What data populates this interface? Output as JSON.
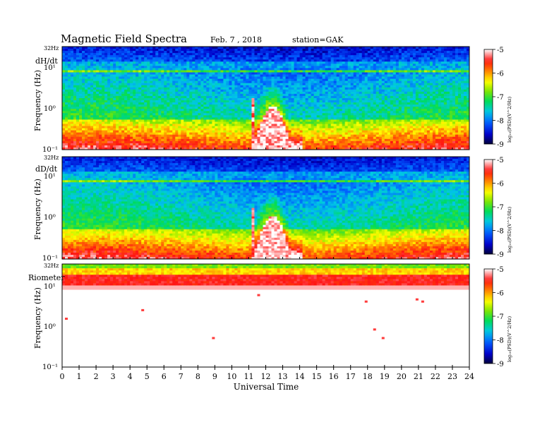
{
  "header": {
    "title": "Magnetic  Field  Spectra",
    "date": "Feb. 7  , 2018",
    "station": "station=GAK"
  },
  "x_axis": {
    "label": "Universal  Time",
    "ticks": [
      "0",
      "1",
      "2",
      "3",
      "4",
      "5",
      "6",
      "7",
      "8",
      "9",
      "10",
      "11",
      "12",
      "13",
      "14",
      "15",
      "16",
      "17",
      "18",
      "19",
      "20",
      "21",
      "22",
      "23",
      "24"
    ]
  },
  "colorbar": {
    "label": "log₁₀(PSD)(V^2/Hz)",
    "ticks": [
      "-5",
      "-6",
      "-7",
      "-8",
      "-9"
    ],
    "stops": [
      "#ffffff",
      "#ff2020",
      "#ffff00",
      "#00dd00",
      "#00cccc",
      "#0040ff",
      "#000040"
    ]
  },
  "panels": [
    {
      "name": "dH/dt",
      "ylabel": "Frequency  (Hz)",
      "top_label": "32Hz",
      "yticks": [
        "10¹",
        "10⁰",
        "10⁻¹"
      ]
    },
    {
      "name": "dD/dt",
      "ylabel": "Frequency  (Hz)",
      "top_label": "32Hz",
      "yticks": [
        "10¹",
        "10⁰",
        "10⁻¹"
      ]
    },
    {
      "name": "Riometer",
      "ylabel": "Frequency  (Hz)",
      "top_label": "32Hz",
      "yticks": [
        "10¹",
        "10⁰",
        "10⁻¹"
      ]
    }
  ],
  "chart_data": [
    {
      "type": "heatmap",
      "panel": "dH/dt",
      "x_range": [
        0,
        24
      ],
      "y_range_hz": [
        0.1,
        32
      ],
      "y_scale": "log",
      "color_range": [
        -9,
        -5
      ],
      "features": {
        "event_start_ut": 11.3,
        "event_peak_ut": 12.4,
        "event_end_ut": 13.5,
        "line_hz": 8
      }
    },
    {
      "type": "heatmap",
      "panel": "dD/dt",
      "x_range": [
        0,
        24
      ],
      "y_range_hz": [
        0.1,
        32
      ],
      "y_scale": "log",
      "color_range": [
        -9,
        -5
      ],
      "features": {
        "event_start_ut": 11.3,
        "event_peak_ut": 12.4,
        "event_end_ut": 13.5,
        "line_hz": 8
      }
    },
    {
      "type": "heatmap",
      "panel": "Riometer",
      "x_range": [
        0,
        24
      ],
      "y_range_hz": [
        0.1,
        32
      ],
      "y_scale": "log",
      "color_range": [
        -9,
        -5
      ]
    }
  ]
}
